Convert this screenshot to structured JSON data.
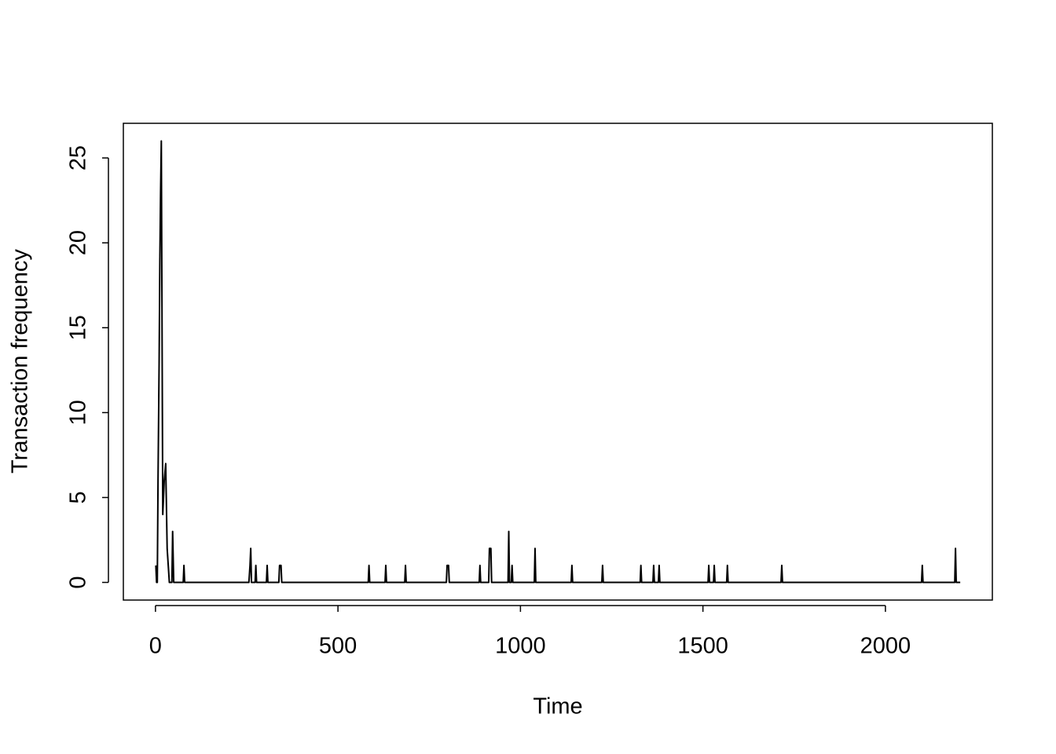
{
  "chart_data": {
    "type": "line",
    "xlabel": "Time",
    "ylabel": "Transaction frequency",
    "x": [
      1,
      3,
      5,
      7,
      10,
      12,
      14,
      16,
      18,
      20,
      24,
      28,
      32,
      35,
      38,
      45,
      47,
      50,
      76,
      78,
      80,
      256,
      259,
      261,
      263,
      273,
      275,
      277,
      304,
      306,
      308,
      338,
      340,
      344,
      346,
      583,
      585,
      587,
      629,
      631,
      633,
      683,
      685,
      687,
      797,
      799,
      803,
      805,
      887,
      889,
      891,
      913,
      915,
      919,
      921,
      966,
      968,
      970,
      975,
      977,
      979,
      1038,
      1040,
      1042,
      1139,
      1141,
      1143,
      1223,
      1225,
      1227,
      1328,
      1330,
      1332,
      1363,
      1365,
      1367,
      1378,
      1380,
      1382,
      1514,
      1516,
      1518,
      1529,
      1531,
      1533,
      1565,
      1567,
      1569,
      1714,
      1716,
      1718,
      2099,
      2101,
      2103,
      2190,
      2192,
      2194,
      2205
    ],
    "series": [
      {
        "name": "Transaction frequency",
        "color": "#000000",
        "values": [
          1,
          0,
          0,
          6,
          13,
          19,
          23,
          26,
          15,
          4,
          6,
          7,
          2,
          1,
          0,
          0,
          3,
          0,
          0,
          1,
          0,
          0,
          1,
          2,
          0,
          0,
          1,
          0,
          0,
          1,
          0,
          0,
          1,
          1,
          0,
          0,
          1,
          0,
          0,
          1,
          0,
          0,
          1,
          0,
          0,
          1,
          1,
          0,
          0,
          1,
          0,
          0,
          2,
          2,
          0,
          0,
          3,
          0,
          0,
          1,
          0,
          0,
          2,
          0,
          0,
          1,
          0,
          0,
          1,
          0,
          0,
          1,
          0,
          0,
          1,
          0,
          0,
          1,
          0,
          0,
          1,
          0,
          0,
          1,
          0,
          0,
          1,
          0,
          0,
          1,
          0,
          0,
          1,
          0,
          0,
          2,
          0,
          0
        ]
      }
    ],
    "xlim": [
      -88,
      2293
    ],
    "xticks": [
      0,
      500,
      1000,
      1500,
      2000
    ],
    "ylim": [
      -1.04,
      27.04
    ],
    "yticks": [
      0,
      5,
      10,
      15,
      20,
      25
    ]
  }
}
